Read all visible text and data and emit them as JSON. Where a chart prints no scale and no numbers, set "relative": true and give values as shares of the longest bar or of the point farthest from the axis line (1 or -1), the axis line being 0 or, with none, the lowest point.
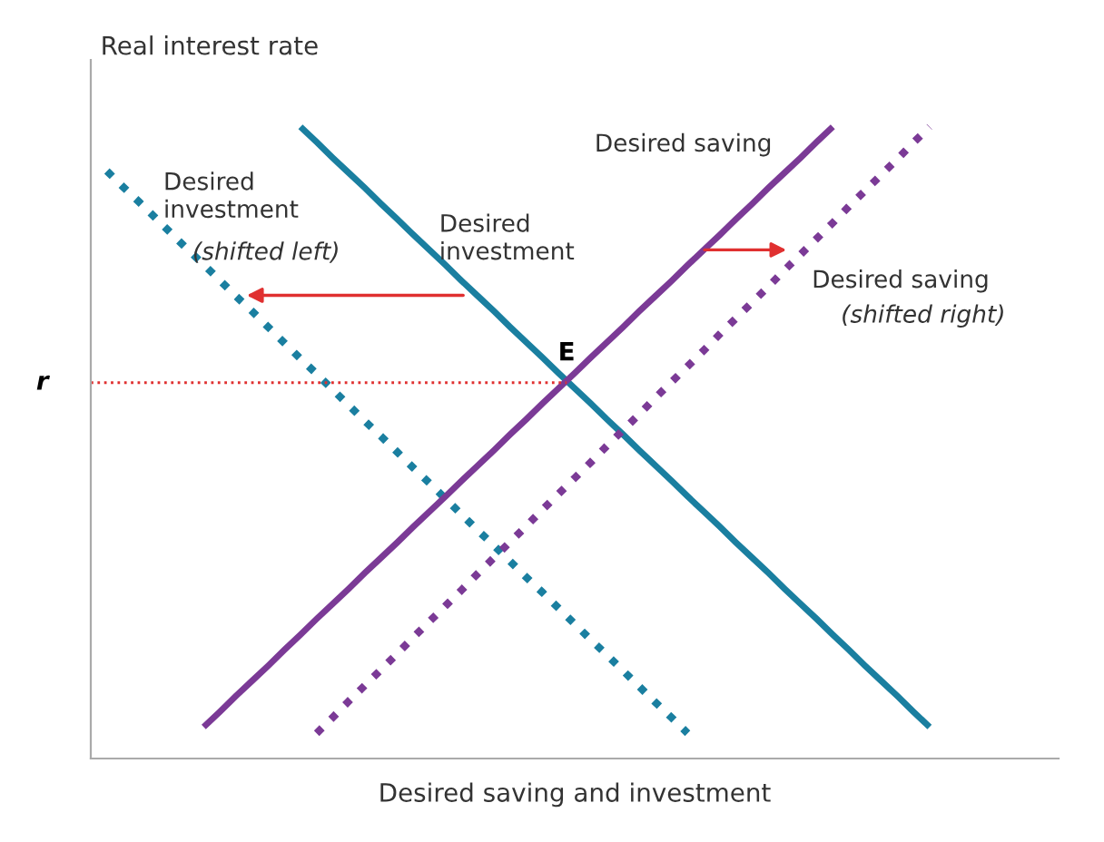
{
  "chart_data": {
    "type": "line",
    "relative": true,
    "xlabel": "Desired saving and investment",
    "ylabel": "Real interest rate",
    "legend": false,
    "marker": "none",
    "categories": [
      null,
      null,
      null,
      null,
      null,
      null,
      null,
      null,
      null,
      null,
      null,
      null,
      null,
      null,
      null,
      null,
      null,
      null,
      null,
      null,
      null,
      null,
      null,
      null,
      null,
      null,
      null,
      null,
      null,
      null,
      null,
      null,
      null,
      null,
      null,
      null,
      null,
      null,
      null,
      null,
      null,
      null,
      null,
      null,
      null,
      null,
      null,
      null,
      null,
      null,
      null,
      null,
      null,
      null,
      null,
      null,
      null,
      null,
      null,
      null,
      null
    ],
    "series": [
      {
        "name": "Desired investment (shifted left)",
        "color": "#1a7fa0",
        "line_style": "dotted",
        "values": [
          null,
          0.93,
          0.905,
          0.881,
          0.856,
          0.831,
          0.806,
          0.782,
          0.757,
          0.732,
          0.708,
          0.683,
          0.658,
          0.633,
          0.609,
          0.584,
          0.559,
          0.534,
          0.51,
          0.485,
          0.46,
          0.436,
          0.411,
          0.386,
          0.361,
          0.337,
          0.312,
          0.287,
          0.263,
          0.238,
          0.213,
          0.188,
          0.164,
          0.139,
          0.114,
          0.089,
          0.065,
          0.04,
          null,
          null,
          null,
          null,
          null,
          null,
          null,
          null,
          null,
          null,
          null,
          null,
          null,
          null,
          null,
          null,
          null,
          null,
          null,
          null,
          null,
          null,
          null
        ]
      },
      {
        "name": "Desired investment",
        "color": "#1a7fa0",
        "line_style": "solid",
        "values": [
          null,
          null,
          null,
          null,
          null,
          null,
          null,
          null,
          null,
          null,
          null,
          null,
          null,
          1,
          0.976,
          0.951,
          0.927,
          0.903,
          0.878,
          0.854,
          0.829,
          0.805,
          0.781,
          0.756,
          0.732,
          0.708,
          0.683,
          0.659,
          0.635,
          0.61,
          0.586,
          0.562,
          0.537,
          0.513,
          0.488,
          0.464,
          0.44,
          0.415,
          0.391,
          0.367,
          0.342,
          0.318,
          0.294,
          0.269,
          0.245,
          0.221,
          0.196,
          0.172,
          0.147,
          0.123,
          0.099,
          0.074,
          0.05,
          null,
          null,
          null,
          null,
          null,
          null,
          null,
          null
        ]
      },
      {
        "name": "Desired saving",
        "color": "#7b3a96",
        "line_style": "solid",
        "values": [
          null,
          null,
          null,
          null,
          null,
          null,
          null,
          0.05,
          0.074,
          0.099,
          0.123,
          0.147,
          0.172,
          0.196,
          0.221,
          0.245,
          0.269,
          0.294,
          0.318,
          0.342,
          0.367,
          0.391,
          0.415,
          0.44,
          0.464,
          0.488,
          0.513,
          0.537,
          0.562,
          0.586,
          0.61,
          0.635,
          0.659,
          0.683,
          0.708,
          0.732,
          0.756,
          0.781,
          0.805,
          0.829,
          0.854,
          0.878,
          0.903,
          0.927,
          0.951,
          0.976,
          1,
          null,
          null,
          null,
          null,
          null,
          null,
          null,
          null,
          null,
          null,
          null,
          null,
          null,
          null
        ]
      },
      {
        "name": "Desired saving (shifted right)",
        "color": "#7b3a96",
        "line_style": "dotted",
        "values": [
          null,
          null,
          null,
          null,
          null,
          null,
          null,
          null,
          null,
          null,
          null,
          null,
          null,
          null,
          0.04,
          0.065,
          0.091,
          0.116,
          0.141,
          0.166,
          0.192,
          0.217,
          0.242,
          0.267,
          0.293,
          0.318,
          0.343,
          0.368,
          0.394,
          0.419,
          0.444,
          0.469,
          0.495,
          0.52,
          0.545,
          0.571,
          0.596,
          0.621,
          0.646,
          0.672,
          0.697,
          0.722,
          0.747,
          0.773,
          0.798,
          0.823,
          0.848,
          0.874,
          0.899,
          0.924,
          0.949,
          0.975,
          1,
          null,
          null,
          null,
          null,
          null,
          null,
          null,
          null
        ]
      }
    ],
    "ref_lines": [
      {
        "axis": "y",
        "value": 0.595,
        "label": "r",
        "color": "#e03030",
        "line_style": "dotted"
      }
    ],
    "annotations": [
      "E"
    ]
  }
}
